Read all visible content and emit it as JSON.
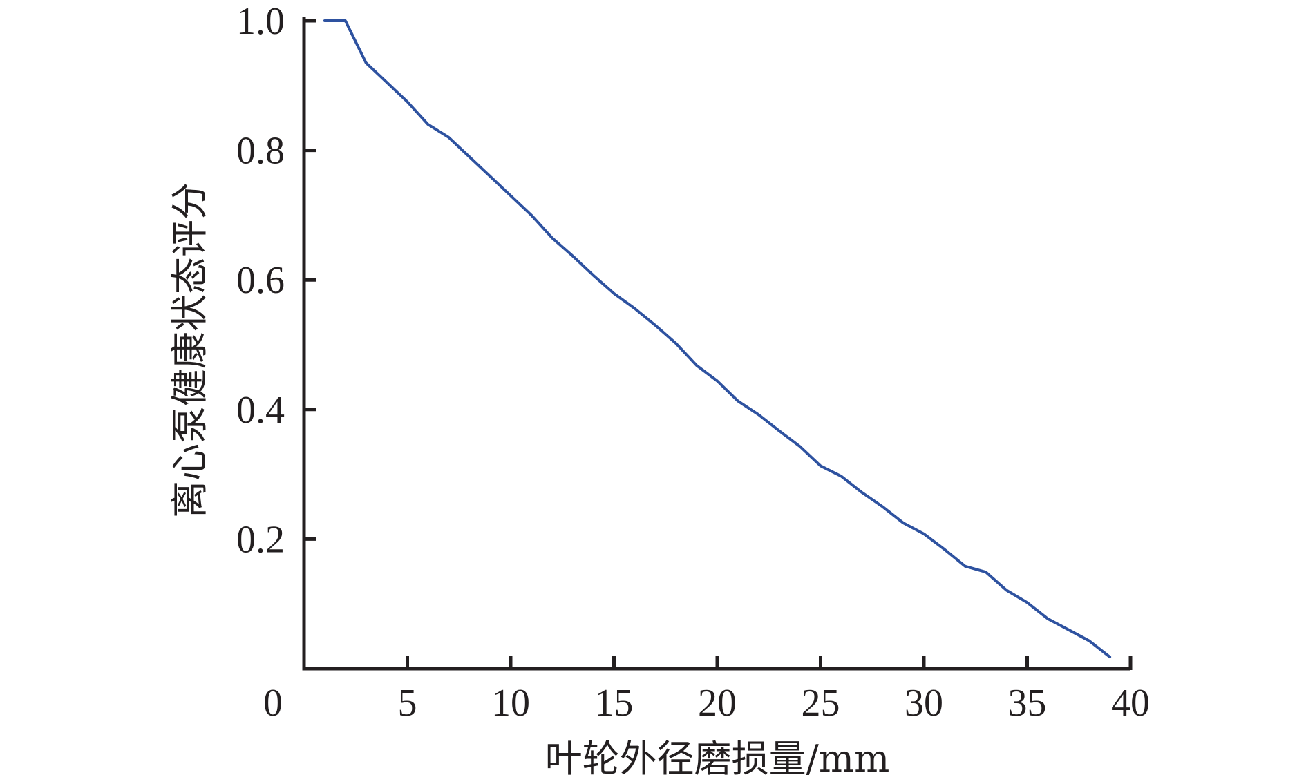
{
  "chart_data": {
    "type": "line",
    "title": "",
    "xlabel": "叶轮外径磨损量/mm",
    "ylabel": "离心泵健康状态评分",
    "xlim": [
      0,
      40
    ],
    "ylim": [
      0,
      1.0
    ],
    "x_ticks": [
      "0",
      "5",
      "10",
      "15",
      "20",
      "25",
      "30",
      "35",
      "40"
    ],
    "y_ticks": [
      "0.2",
      "0.4",
      "0.6",
      "0.8",
      "1.0"
    ],
    "grid": false,
    "legend": "none",
    "series": [
      {
        "color": "#2e52a0",
        "x": [
          1,
          2,
          3,
          4,
          5,
          6,
          7,
          8,
          9,
          10,
          11,
          12,
          13,
          14,
          15,
          16,
          17,
          18,
          19,
          20,
          21,
          22,
          23,
          24,
          25,
          26,
          27,
          28,
          29,
          30,
          31,
          32,
          33,
          34,
          35,
          36,
          37,
          38,
          39
        ],
        "y": [
          1.0,
          1.0,
          0.935,
          0.905,
          0.875,
          0.84,
          0.82,
          0.79,
          0.76,
          0.73,
          0.7,
          0.665,
          0.637,
          0.607,
          0.579,
          0.556,
          0.53,
          0.502,
          0.468,
          0.444,
          0.413,
          0.392,
          0.367,
          0.343,
          0.313,
          0.297,
          0.272,
          0.25,
          0.225,
          0.208,
          0.184,
          0.158,
          0.149,
          0.121,
          0.102,
          0.077,
          0.06,
          0.043,
          0.018
        ]
      }
    ]
  }
}
